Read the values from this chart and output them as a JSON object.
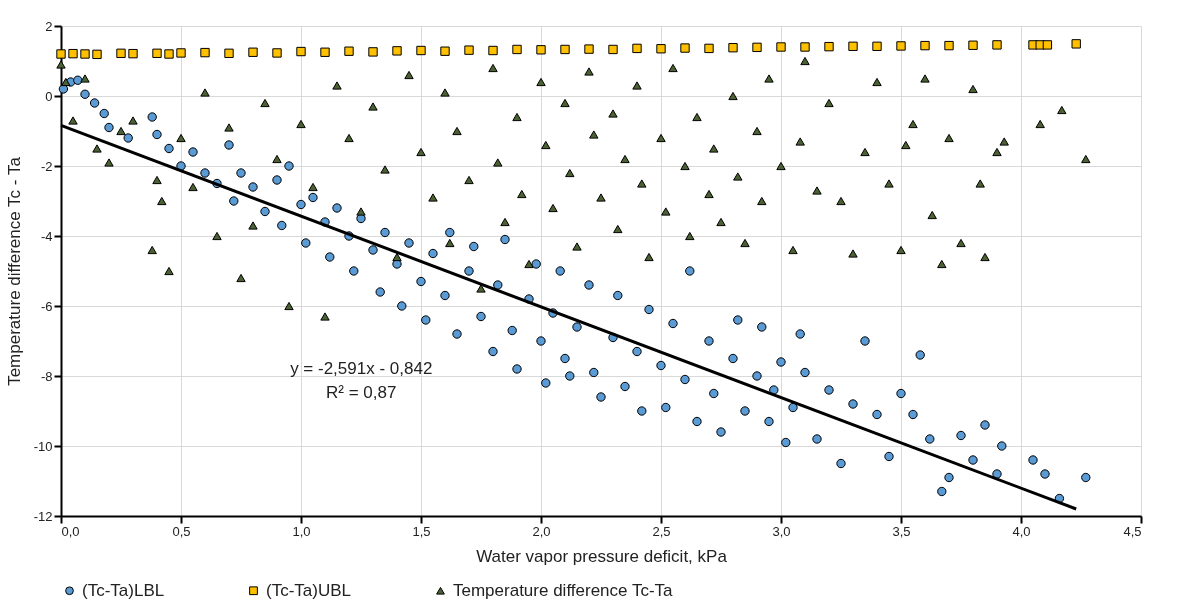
{
  "chart_data": {
    "type": "scatter",
    "xlabel": "Water vapor pressure deficit, kPa",
    "ylabel": "Temperature difference Tc - Ta",
    "xlim": [
      0,
      4.5
    ],
    "ylim": [
      -12,
      2
    ],
    "xticks": [
      {
        "value": 0,
        "label": "0,0"
      },
      {
        "value": 0.5,
        "label": "0,5"
      },
      {
        "value": 1,
        "label": "1,0"
      },
      {
        "value": 1.5,
        "label": "1,5"
      },
      {
        "value": 2,
        "label": "2,0"
      },
      {
        "value": 2.5,
        "label": "2,5"
      },
      {
        "value": 3,
        "label": "3,0"
      },
      {
        "value": 3.5,
        "label": "3,5"
      },
      {
        "value": 4,
        "label": "4,0"
      },
      {
        "value": 4.5,
        "label": "4,5"
      }
    ],
    "yticks": [
      -12,
      -10,
      -8,
      -6,
      -4,
      -2,
      0,
      2
    ],
    "grid": true,
    "legend": "bottom",
    "annotations": [
      "y = -2,591x - 0,842",
      "R² = 0,87"
    ],
    "series": [
      {
        "name": "(Tc-Ta)LBL",
        "color": "#5b9bd5",
        "marker": "circle",
        "x": [
          0.01,
          0.04,
          0.07,
          0.1,
          0.14,
          0.18,
          0.2,
          0.28,
          0.38,
          0.4,
          0.45,
          0.5,
          0.55,
          0.6,
          0.65,
          0.7,
          0.72,
          0.75,
          0.8,
          0.85,
          0.9,
          0.92,
          0.95,
          1.0,
          1.02,
          1.05,
          1.1,
          1.12,
          1.15,
          1.2,
          1.22,
          1.25,
          1.3,
          1.33,
          1.35,
          1.4,
          1.42,
          1.45,
          1.5,
          1.52,
          1.55,
          1.6,
          1.62,
          1.65,
          1.7,
          1.72,
          1.75,
          1.8,
          1.82,
          1.85,
          1.88,
          1.9,
          1.95,
          1.98,
          2.0,
          2.02,
          2.05,
          2.08,
          2.1,
          2.12,
          2.15,
          2.2,
          2.22,
          2.25,
          2.3,
          2.32,
          2.35,
          2.4,
          2.42,
          2.45,
          2.5,
          2.52,
          2.55,
          2.6,
          2.62,
          2.65,
          2.7,
          2.72,
          2.75,
          2.8,
          2.82,
          2.85,
          2.9,
          2.92,
          2.95,
          2.97,
          3.0,
          3.02,
          3.05,
          3.08,
          3.1,
          3.15,
          3.2,
          3.25,
          3.3,
          3.35,
          3.4,
          3.45,
          3.5,
          3.55,
          3.58,
          3.62,
          3.67,
          3.7,
          3.75,
          3.8,
          3.85,
          3.9,
          3.92,
          4.05,
          4.1,
          4.16,
          4.27
        ],
        "values": [
          0.2,
          0.4,
          0.45,
          0.05,
          -0.2,
          -0.5,
          -0.9,
          -1.2,
          -0.6,
          -1.1,
          -1.5,
          -2.0,
          -1.6,
          -2.2,
          -2.5,
          -1.4,
          -3.0,
          -2.2,
          -2.6,
          -3.3,
          -2.4,
          -3.7,
          -2.0,
          -3.1,
          -4.2,
          -2.9,
          -3.6,
          -4.6,
          -3.2,
          -4.0,
          -5.0,
          -3.5,
          -4.4,
          -5.6,
          -3.9,
          -4.8,
          -6.0,
          -4.2,
          -5.3,
          -6.4,
          -4.5,
          -5.7,
          -3.9,
          -6.8,
          -5.0,
          -4.3,
          -6.3,
          -7.3,
          -5.4,
          -4.1,
          -6.7,
          -7.8,
          -5.8,
          -4.8,
          -7.0,
          -8.2,
          -6.2,
          -5.0,
          -7.5,
          -8.0,
          -6.6,
          -5.4,
          -7.9,
          -8.6,
          -6.9,
          -5.7,
          -8.3,
          -7.3,
          -9.0,
          -6.1,
          -7.7,
          -8.9,
          -6.5,
          -8.1,
          -5.0,
          -9.3,
          -7.0,
          -8.5,
          -9.6,
          -7.5,
          -6.4,
          -9.0,
          -8.0,
          -6.6,
          -9.3,
          -8.4,
          -7.6,
          -9.9,
          -8.9,
          -6.8,
          -7.9,
          -9.8,
          -8.4,
          -10.5,
          -8.8,
          -7.0,
          -9.1,
          -10.3,
          -8.5,
          -9.1,
          -7.4,
          -9.8,
          -11.3,
          -10.9,
          -9.7,
          -10.4,
          -9.4,
          -10.8,
          -10.0,
          -10.4,
          -10.8,
          -11.5,
          -10.9
        ]
      },
      {
        "name": "(Tc-Ta)UBL",
        "color": "#ffc000",
        "marker": "square",
        "x": [
          0.0,
          0.05,
          0.1,
          0.15,
          0.25,
          0.3,
          0.4,
          0.45,
          0.5,
          0.6,
          0.7,
          0.8,
          0.9,
          1.0,
          1.1,
          1.2,
          1.3,
          1.4,
          1.5,
          1.6,
          1.7,
          1.8,
          1.9,
          2.0,
          2.1,
          2.2,
          2.3,
          2.4,
          2.5,
          2.6,
          2.7,
          2.8,
          2.9,
          3.0,
          3.1,
          3.2,
          3.3,
          3.4,
          3.5,
          3.6,
          3.7,
          3.8,
          3.9,
          4.05,
          4.08,
          4.11,
          4.23
        ],
        "values": [
          1.2,
          1.21,
          1.2,
          1.19,
          1.22,
          1.21,
          1.22,
          1.2,
          1.23,
          1.24,
          1.22,
          1.25,
          1.23,
          1.27,
          1.25,
          1.28,
          1.26,
          1.29,
          1.3,
          1.28,
          1.31,
          1.3,
          1.33,
          1.32,
          1.33,
          1.34,
          1.33,
          1.36,
          1.35,
          1.37,
          1.36,
          1.38,
          1.39,
          1.4,
          1.4,
          1.41,
          1.42,
          1.42,
          1.43,
          1.44,
          1.44,
          1.45,
          1.46,
          1.46,
          1.46,
          1.46,
          1.49
        ]
      },
      {
        "name": "Temperature difference Tc-Ta",
        "color": "#4b6133",
        "marker": "triangle",
        "x": [
          0.0,
          0.02,
          0.05,
          0.1,
          0.15,
          0.2,
          0.25,
          0.3,
          0.38,
          0.4,
          0.42,
          0.45,
          0.5,
          0.55,
          0.6,
          0.65,
          0.7,
          0.75,
          0.8,
          0.85,
          0.9,
          0.95,
          1.0,
          1.05,
          1.1,
          1.15,
          1.2,
          1.25,
          1.3,
          1.35,
          1.4,
          1.45,
          1.5,
          1.55,
          1.6,
          1.62,
          1.65,
          1.7,
          1.75,
          1.8,
          1.82,
          1.85,
          1.9,
          1.92,
          1.95,
          2.0,
          2.02,
          2.05,
          2.1,
          2.12,
          2.15,
          2.2,
          2.22,
          2.25,
          2.3,
          2.32,
          2.35,
          2.4,
          2.42,
          2.45,
          2.5,
          2.52,
          2.55,
          2.6,
          2.62,
          2.65,
          2.7,
          2.72,
          2.75,
          2.8,
          2.82,
          2.85,
          2.9,
          2.92,
          2.95,
          3.0,
          3.05,
          3.08,
          3.1,
          3.15,
          3.2,
          3.25,
          3.3,
          3.35,
          3.4,
          3.45,
          3.5,
          3.52,
          3.55,
          3.6,
          3.63,
          3.67,
          3.7,
          3.75,
          3.8,
          3.83,
          3.85,
          3.9,
          3.93,
          4.08,
          4.17,
          4.27
        ],
        "values": [
          0.9,
          0.4,
          -0.7,
          0.5,
          -1.5,
          -1.9,
          -1.0,
          -0.7,
          -4.4,
          -2.4,
          -3.0,
          -5.0,
          -1.2,
          -2.6,
          0.1,
          -4.0,
          -0.9,
          -5.2,
          -3.7,
          -0.2,
          -1.8,
          -6.0,
          -0.8,
          -2.6,
          -6.3,
          0.3,
          -1.2,
          -3.3,
          -0.3,
          -2.1,
          -4.6,
          0.6,
          -1.6,
          -2.9,
          0.1,
          -4.2,
          -1.0,
          -2.4,
          -5.5,
          0.8,
          -1.9,
          -3.6,
          -0.6,
          -2.8,
          -4.8,
          0.4,
          -1.4,
          -3.2,
          -0.2,
          -2.2,
          -4.3,
          0.7,
          -1.1,
          -2.9,
          -0.5,
          -3.8,
          -1.8,
          0.3,
          -2.5,
          -4.6,
          -1.2,
          -3.3,
          0.8,
          -2.0,
          -4.0,
          -0.6,
          -2.8,
          -1.5,
          -3.6,
          0.0,
          -2.3,
          -4.2,
          -1.0,
          -3.0,
          0.5,
          -2.0,
          -4.4,
          -1.3,
          1.0,
          -2.7,
          -0.2,
          -3.0,
          -4.5,
          -1.6,
          0.4,
          -2.5,
          -4.4,
          -1.4,
          -0.8,
          0.5,
          -3.4,
          -4.8,
          -1.2,
          -4.2,
          0.2,
          -2.5,
          -4.6,
          -1.6,
          -1.3,
          -0.8,
          -0.4,
          -1.8
        ]
      },
      {
        "type": "line",
        "color": "#000000",
        "line_style": "solid",
        "x": [
          0,
          4.23
        ],
        "values": [
          -0.84,
          -11.8
        ]
      }
    ]
  }
}
